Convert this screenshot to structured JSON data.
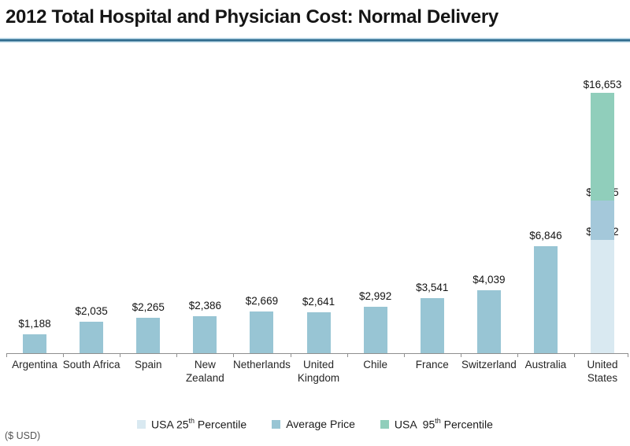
{
  "title": "2012 Total Hospital and Physician Cost: Normal Delivery",
  "footnote": "($ USD)",
  "colors": {
    "p25": "#d9e9f1",
    "avg": "#98c5d4",
    "avg_us": "#a4c8da",
    "p95": "#90cebb",
    "divider_dark": "#2e6a8c",
    "divider_light": "#bcd9e8",
    "axis": "#8f8f8f"
  },
  "legend": {
    "items": [
      {
        "series": "p25",
        "prefix": "USA 25",
        "sup": "th",
        "suffix": " Percentile"
      },
      {
        "series": "avg",
        "prefix": "Average Price",
        "sup": "",
        "suffix": ""
      },
      {
        "series": "p95",
        "prefix": "USA  95",
        "sup": "th",
        "suffix": " Percentile"
      }
    ]
  },
  "chart_data": {
    "type": "bar",
    "title": "2012 Total Hospital and Physician Cost: Normal Delivery",
    "unit": "$ USD",
    "ylim": [
      0,
      17000
    ],
    "grid": false,
    "legend_position": "bottom",
    "categories": [
      "Argentina",
      "South Africa",
      "Spain",
      "New Zealand",
      "Netherlands",
      "United Kingdom",
      "Chile",
      "France",
      "Switzerland",
      "Australia",
      "United States"
    ],
    "series": [
      {
        "name": "Average Price",
        "values": [
          1188,
          2035,
          2265,
          2386,
          2669,
          2641,
          2992,
          3541,
          4039,
          6846,
          9775
        ]
      },
      {
        "name": "USA 25th Percentile",
        "values": [
          null,
          null,
          null,
          null,
          null,
          null,
          null,
          null,
          null,
          null,
          7262
        ]
      },
      {
        "name": "USA 95th Percentile",
        "values": [
          null,
          null,
          null,
          null,
          null,
          null,
          null,
          null,
          null,
          null,
          16653
        ]
      }
    ],
    "usa_summary": {
      "percentile_25": 7262,
      "average_price": 9775,
      "percentile_95": 16653
    },
    "bars": [
      {
        "category_lines": [
          "Argentina"
        ],
        "segments": [
          {
            "series": "avg",
            "from": 0,
            "to": 1188,
            "label": "$1,188"
          }
        ]
      },
      {
        "category_lines": [
          "South Africa"
        ],
        "segments": [
          {
            "series": "avg",
            "from": 0,
            "to": 2035,
            "label": "$2,035"
          }
        ]
      },
      {
        "category_lines": [
          "Spain"
        ],
        "segments": [
          {
            "series": "avg",
            "from": 0,
            "to": 2265,
            "label": "$2,265"
          }
        ]
      },
      {
        "category_lines": [
          "New",
          "Zealand"
        ],
        "segments": [
          {
            "series": "avg",
            "from": 0,
            "to": 2386,
            "label": "$2,386"
          }
        ]
      },
      {
        "category_lines": [
          "Netherlands"
        ],
        "segments": [
          {
            "series": "avg",
            "from": 0,
            "to": 2669,
            "label": "$2,669"
          }
        ]
      },
      {
        "category_lines": [
          "United",
          "Kingdom"
        ],
        "segments": [
          {
            "series": "avg",
            "from": 0,
            "to": 2641,
            "label": "$2,641"
          }
        ]
      },
      {
        "category_lines": [
          "Chile"
        ],
        "segments": [
          {
            "series": "avg",
            "from": 0,
            "to": 2992,
            "label": "$2,992"
          }
        ]
      },
      {
        "category_lines": [
          "France"
        ],
        "segments": [
          {
            "series": "avg",
            "from": 0,
            "to": 3541,
            "label": "$3,541"
          }
        ]
      },
      {
        "category_lines": [
          "Switzerland"
        ],
        "segments": [
          {
            "series": "avg",
            "from": 0,
            "to": 4039,
            "label": "$4,039"
          }
        ]
      },
      {
        "category_lines": [
          "Australia"
        ],
        "segments": [
          {
            "series": "avg",
            "from": 0,
            "to": 6846,
            "label": "$6,846"
          }
        ]
      },
      {
        "category_lines": [
          "United",
          "States"
        ],
        "segments": [
          {
            "series": "p25",
            "from": 0,
            "to": 7262,
            "label": "$7,262"
          },
          {
            "series": "avg_us",
            "from": 7262,
            "to": 9775,
            "label": "$9,775"
          },
          {
            "series": "p95",
            "from": 9775,
            "to": 16653,
            "label": "$16,653"
          }
        ]
      }
    ]
  }
}
